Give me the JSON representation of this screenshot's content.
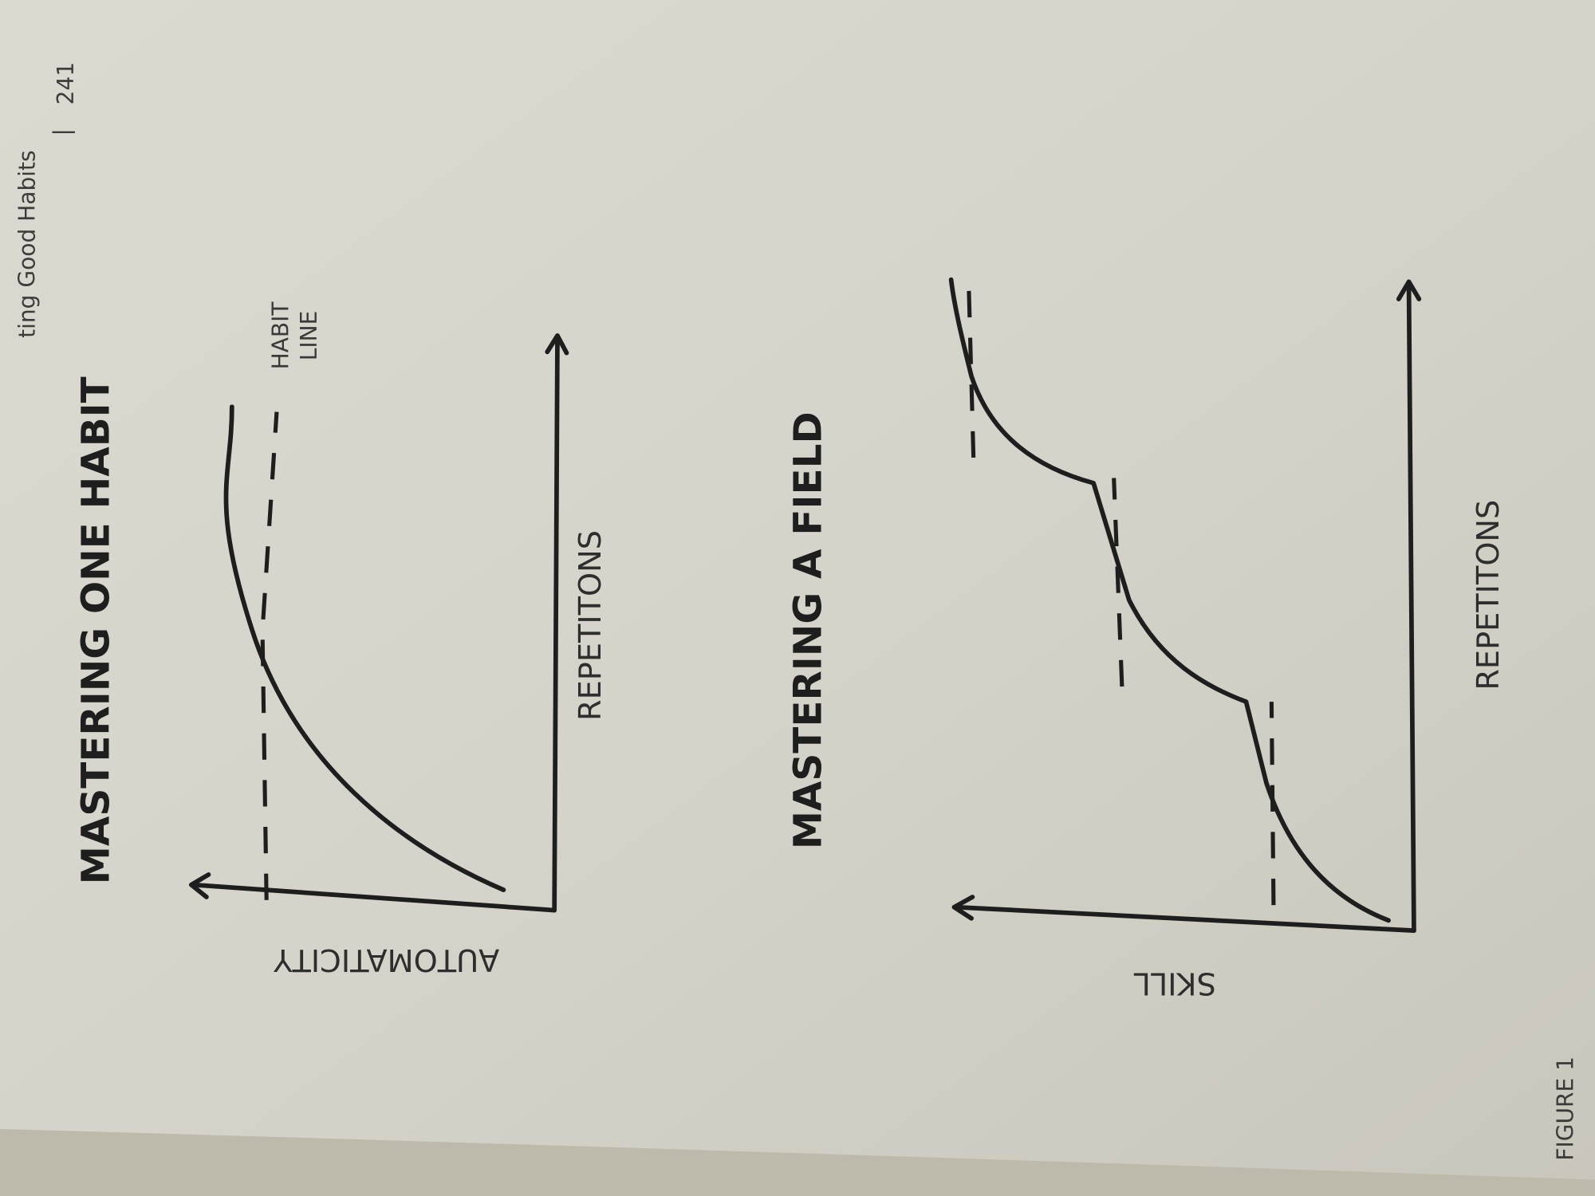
{
  "header": {
    "section": "ting Good Habits",
    "separator": "|",
    "page": "241"
  },
  "figures": [
    {
      "title": "MASTERING ONE HABIT",
      "y_axis_label": "AUTOMATICITY",
      "x_axis_label": "REPETITONS",
      "annotation": [
        "HABIT",
        "LINE"
      ]
    },
    {
      "title": "MASTERING A FIELD",
      "y_axis_label": "SKILL",
      "x_axis_label": "REPETITONS"
    }
  ],
  "caption": "FIGURE 1"
}
